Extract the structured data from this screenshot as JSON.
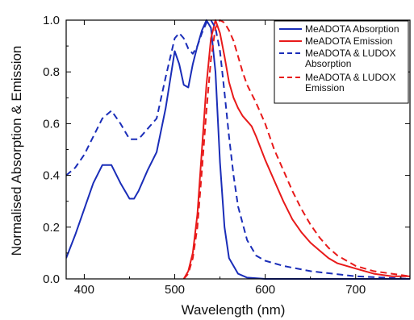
{
  "chart_data": {
    "type": "line",
    "xlabel": "Wavelength (nm)",
    "ylabel": "Normalised Absorption & Emission",
    "xlim": [
      380,
      760
    ],
    "ylim": [
      0,
      1.0
    ],
    "x_ticks": [
      400,
      500,
      600,
      700
    ],
    "y_ticks": [
      0.0,
      0.2,
      0.4,
      0.6,
      0.8,
      1.0
    ],
    "x_tick_labels": [
      "400",
      "500",
      "600",
      "700"
    ],
    "y_tick_labels": [
      "0.0",
      "0.2",
      "0.4",
      "0.6",
      "0.8",
      "1.0"
    ],
    "grid": false,
    "legend_position": "top-right",
    "series": [
      {
        "name": "MeADOTA Absorption",
        "color": "#1a2db8",
        "style": "solid",
        "x": [
          380,
          390,
          400,
          410,
          420,
          430,
          440,
          450,
          455,
          460,
          470,
          480,
          490,
          500,
          505,
          510,
          515,
          520,
          525,
          530,
          535,
          540,
          545,
          550,
          555,
          560,
          570,
          580,
          600,
          650,
          700,
          760
        ],
        "y": [
          0.08,
          0.17,
          0.27,
          0.37,
          0.44,
          0.44,
          0.37,
          0.31,
          0.31,
          0.34,
          0.42,
          0.49,
          0.66,
          0.88,
          0.83,
          0.75,
          0.74,
          0.83,
          0.9,
          0.96,
          1.0,
          0.97,
          0.8,
          0.45,
          0.2,
          0.08,
          0.02,
          0.005,
          0.0,
          0.0,
          0.0,
          0.0
        ]
      },
      {
        "name": "MeADOTA Emission",
        "color": "#e81a1a",
        "style": "solid",
        "x": [
          510,
          515,
          520,
          525,
          530,
          535,
          540,
          545,
          550,
          555,
          560,
          565,
          570,
          575,
          580,
          585,
          590,
          600,
          610,
          620,
          630,
          640,
          650,
          660,
          670,
          680,
          690,
          700,
          720,
          740,
          760
        ],
        "y": [
          0.0,
          0.03,
          0.1,
          0.25,
          0.5,
          0.75,
          0.93,
          1.0,
          0.95,
          0.86,
          0.76,
          0.7,
          0.66,
          0.63,
          0.61,
          0.59,
          0.55,
          0.46,
          0.38,
          0.3,
          0.23,
          0.18,
          0.14,
          0.11,
          0.08,
          0.06,
          0.05,
          0.04,
          0.02,
          0.01,
          0.01
        ]
      },
      {
        "name": "MeADOTA & LUDOX Absorption",
        "color": "#1a2db8",
        "style": "dashed",
        "x": [
          380,
          390,
          400,
          410,
          420,
          430,
          440,
          450,
          460,
          470,
          480,
          490,
          500,
          505,
          510,
          515,
          520,
          525,
          530,
          535,
          540,
          545,
          550,
          555,
          560,
          565,
          570,
          580,
          590,
          600,
          620,
          650,
          700,
          760
        ],
        "y": [
          0.4,
          0.43,
          0.48,
          0.55,
          0.62,
          0.65,
          0.6,
          0.54,
          0.54,
          0.58,
          0.62,
          0.78,
          0.93,
          0.95,
          0.93,
          0.89,
          0.87,
          0.9,
          0.95,
          0.99,
          1.0,
          0.97,
          0.88,
          0.72,
          0.55,
          0.4,
          0.28,
          0.15,
          0.09,
          0.07,
          0.05,
          0.03,
          0.01,
          0.0
        ]
      },
      {
        "name": "MeADOTA & LUDOX Emission",
        "color": "#e81a1a",
        "style": "dashed",
        "x": [
          510,
          515,
          520,
          525,
          530,
          535,
          540,
          545,
          550,
          555,
          560,
          565,
          570,
          575,
          580,
          590,
          600,
          610,
          620,
          630,
          640,
          650,
          660,
          670,
          680,
          690,
          700,
          720,
          740,
          760
        ],
        "y": [
          0.0,
          0.02,
          0.08,
          0.2,
          0.42,
          0.65,
          0.85,
          0.97,
          1.0,
          0.99,
          0.96,
          0.92,
          0.86,
          0.8,
          0.75,
          0.68,
          0.6,
          0.5,
          0.42,
          0.34,
          0.27,
          0.21,
          0.16,
          0.12,
          0.09,
          0.07,
          0.05,
          0.03,
          0.02,
          0.01
        ]
      }
    ],
    "legend": [
      [
        "MeADOTA Absorption"
      ],
      [
        "MeADOTA Emission"
      ],
      [
        "MeADOTA & LUDOX",
        "Absorption"
      ],
      [
        "MeADOTA & LUDOX",
        "Emission"
      ]
    ]
  }
}
